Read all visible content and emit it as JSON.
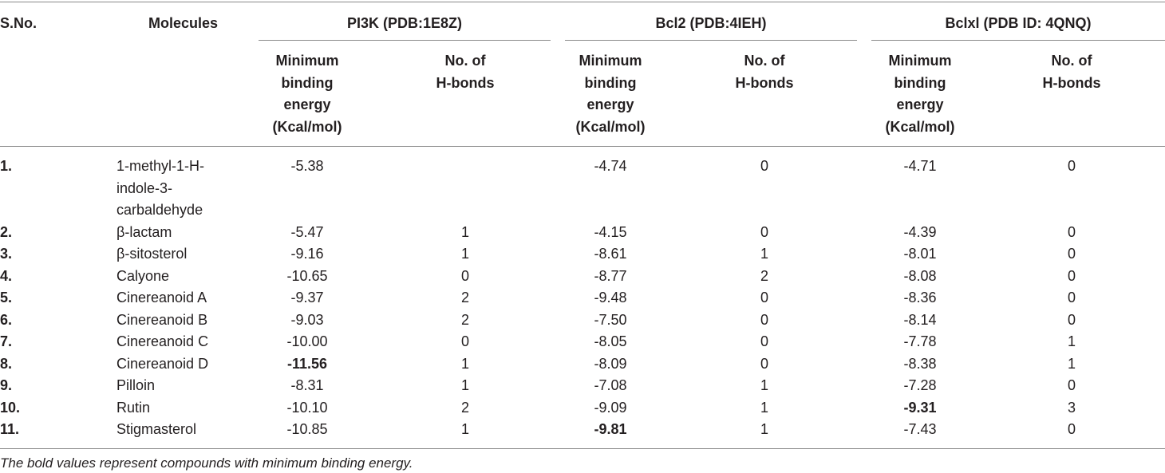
{
  "header": {
    "sno": "S.No.",
    "molecules": "Molecules",
    "groups": [
      "PI3K (PDB:1E8Z)",
      "Bcl2 (PDB:4IEH)",
      "Bclxl (PDB ID: 4QNQ)"
    ],
    "energy_label": [
      "Minimum",
      "binding",
      "energy",
      "(Kcal/mol)"
    ],
    "hbond_label": [
      "No. of",
      "H-bonds"
    ]
  },
  "rows": [
    {
      "sno": "1.",
      "molecule": [
        "1-methyl-1-H-",
        "indole-3-",
        "carbaldehyde"
      ],
      "pi3k_energy": "-5.38",
      "pi3k_hbonds": "",
      "bcl2_energy": "-4.74",
      "bcl2_hbonds": "0",
      "bclxl_energy": "-4.71",
      "bclxl_hbonds": "0"
    },
    {
      "sno": "2.",
      "molecule": [
        "β-lactam"
      ],
      "pi3k_energy": "-5.47",
      "pi3k_hbonds": "1",
      "bcl2_energy": "-4.15",
      "bcl2_hbonds": "0",
      "bclxl_energy": "-4.39",
      "bclxl_hbonds": "0"
    },
    {
      "sno": "3.",
      "molecule": [
        "β-sitosterol"
      ],
      "pi3k_energy": "-9.16",
      "pi3k_hbonds": "1",
      "bcl2_energy": "-8.61",
      "bcl2_hbonds": "1",
      "bclxl_energy": "-8.01",
      "bclxl_hbonds": "0"
    },
    {
      "sno": "4.",
      "molecule": [
        "Calyone"
      ],
      "pi3k_energy": "-10.65",
      "pi3k_hbonds": "0",
      "bcl2_energy": "-8.77",
      "bcl2_hbonds": "2",
      "bclxl_energy": "-8.08",
      "bclxl_hbonds": "0"
    },
    {
      "sno": "5.",
      "molecule": [
        "Cinereanoid A"
      ],
      "pi3k_energy": "-9.37",
      "pi3k_hbonds": "2",
      "bcl2_energy": "-9.48",
      "bcl2_hbonds": "0",
      "bclxl_energy": "-8.36",
      "bclxl_hbonds": "0"
    },
    {
      "sno": "6.",
      "molecule": [
        "Cinereanoid B"
      ],
      "pi3k_energy": "-9.03",
      "pi3k_hbonds": "2",
      "bcl2_energy": "-7.50",
      "bcl2_hbonds": "0",
      "bclxl_energy": "-8.14",
      "bclxl_hbonds": "0"
    },
    {
      "sno": "7.",
      "molecule": [
        "Cinereanoid C"
      ],
      "pi3k_energy": "-10.00",
      "pi3k_hbonds": "0",
      "bcl2_energy": "-8.05",
      "bcl2_hbonds": "0",
      "bclxl_energy": "-7.78",
      "bclxl_hbonds": "1"
    },
    {
      "sno": "8.",
      "molecule": [
        "Cinereanoid D"
      ],
      "pi3k_energy": "-11.56",
      "pi3k_hbonds": "1",
      "bcl2_energy": "-8.09",
      "bcl2_hbonds": "0",
      "bclxl_energy": "-8.38",
      "bclxl_hbonds": "1"
    },
    {
      "sno": "9.",
      "molecule": [
        "Pilloin"
      ],
      "pi3k_energy": "-8.31",
      "pi3k_hbonds": "1",
      "bcl2_energy": "-7.08",
      "bcl2_hbonds": "1",
      "bclxl_energy": "-7.28",
      "bclxl_hbonds": "0"
    },
    {
      "sno": "10.",
      "molecule": [
        "Rutin"
      ],
      "pi3k_energy": "-10.10",
      "pi3k_hbonds": "2",
      "bcl2_energy": "-9.09",
      "bcl2_hbonds": "1",
      "bclxl_energy": "-9.31",
      "bclxl_hbonds": "3"
    },
    {
      "sno": "11.",
      "molecule": [
        "Stigmasterol"
      ],
      "pi3k_energy": "-10.85",
      "pi3k_hbonds": "1",
      "bcl2_energy": "-9.81",
      "bcl2_hbonds": "1",
      "bclxl_energy": "-7.43",
      "bclxl_hbonds": "0"
    }
  ],
  "bold_cells": {
    "pi3k_energy": "8.",
    "bcl2_energy": "11.",
    "bclxl_energy": "10."
  },
  "footnote": "The bold values represent compounds with minimum binding energy."
}
